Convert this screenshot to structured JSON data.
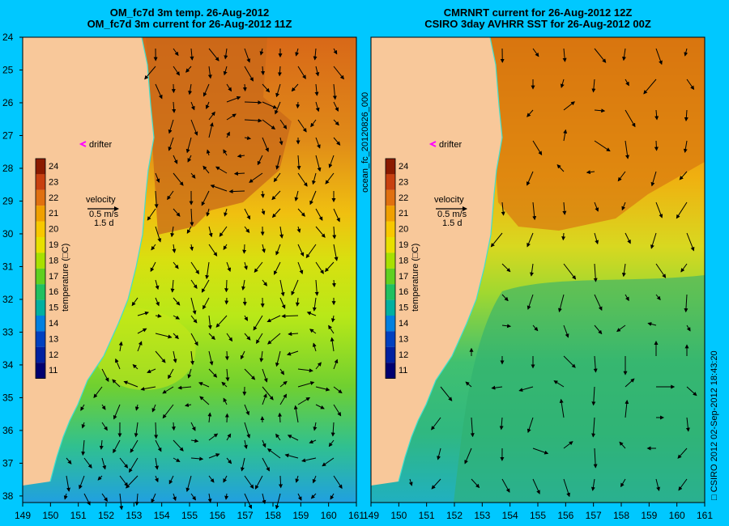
{
  "left_panel": {
    "title_line1": "OM_fc7d 3m temp. 26-Aug-2012",
    "title_line2": "OM_fc7d 3m current for 26-Aug-2012 11Z",
    "drifter_label": "drifter",
    "velocity_label": "velocity",
    "velocity_scale": "0.5 m/s",
    "velocity_days": "1.5 d"
  },
  "right_panel": {
    "title_line1": "CMRNRT current for 26-Aug-2012 12Z",
    "title_line2": "CSIRO 3day AVHRR SST for 26-Aug-2012 00Z",
    "drifter_label": "drifter",
    "velocity_label": "velocity",
    "velocity_scale": "0.5 m/s",
    "velocity_days": "1.5 d"
  },
  "colorbar": {
    "label": "temperature (□C)",
    "ticks": [
      "24",
      "23",
      "22",
      "21",
      "20",
      "19",
      "18",
      "17",
      "16",
      "15",
      "14",
      "13",
      "12",
      "11"
    ],
    "colors": [
      "#8b1a00",
      "#c84010",
      "#e07010",
      "#f0a000",
      "#f8c800",
      "#e8e000",
      "#a8e000",
      "#60d020",
      "#20c060",
      "#00b0a0",
      "#0080e0",
      "#0040c0",
      "#0020a0",
      "#000070"
    ]
  },
  "y_axis": {
    "ticks": [
      "24",
      "25",
      "26",
      "27",
      "28",
      "29",
      "30",
      "31",
      "32",
      "33",
      "34",
      "35",
      "36",
      "37",
      "38"
    ]
  },
  "x_axis": {
    "ticks": [
      "149",
      "150",
      "151",
      "152",
      "153",
      "154",
      "155",
      "156",
      "157",
      "158",
      "159",
      "160",
      "161"
    ]
  },
  "side_label": "ocean_fc_20120826_000",
  "credit": "□ CSIRO 2012   02-Sep-2012 18:43:20",
  "colors": {
    "background": "#00c8ff",
    "land": "#f8c89a",
    "drifter": "#ff00ff"
  }
}
